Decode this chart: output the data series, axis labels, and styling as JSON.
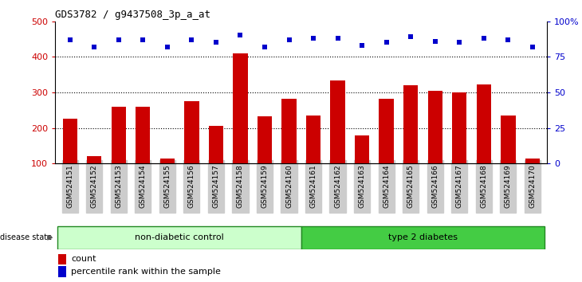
{
  "title": "GDS3782 / g9437508_3p_a_at",
  "samples": [
    "GSM524151",
    "GSM524152",
    "GSM524153",
    "GSM524154",
    "GSM524155",
    "GSM524156",
    "GSM524157",
    "GSM524158",
    "GSM524159",
    "GSM524160",
    "GSM524161",
    "GSM524162",
    "GSM524163",
    "GSM524164",
    "GSM524165",
    "GSM524166",
    "GSM524167",
    "GSM524168",
    "GSM524169",
    "GSM524170"
  ],
  "counts": [
    225,
    120,
    260,
    260,
    115,
    275,
    205,
    410,
    232,
    282,
    235,
    333,
    180,
    282,
    320,
    305,
    300,
    323,
    235,
    115
  ],
  "percentiles": [
    87,
    82,
    87,
    87,
    82,
    87,
    85,
    90,
    82,
    87,
    88,
    88,
    83,
    85,
    89,
    86,
    85,
    88,
    87,
    82
  ],
  "group_labels": [
    "non-diabetic control",
    "type 2 diabetes"
  ],
  "group_split": 10,
  "group_color_light": "#ccffcc",
  "group_color_dark": "#44cc44",
  "group_border": "#228822",
  "bar_color": "#cc0000",
  "dot_color": "#0000cc",
  "ylim_left": [
    100,
    500
  ],
  "ylim_right": [
    0,
    100
  ],
  "yticks_left": [
    100,
    200,
    300,
    400,
    500
  ],
  "yticks_right": [
    0,
    25,
    50,
    75,
    100
  ],
  "ytick_labels_right": [
    "0",
    "25",
    "50",
    "75",
    "100%"
  ],
  "grid_values": [
    200,
    300,
    400
  ],
  "fig_bg": "#ffffff",
  "plot_bg": "#ffffff",
  "xticklabel_bg": "#cccccc"
}
